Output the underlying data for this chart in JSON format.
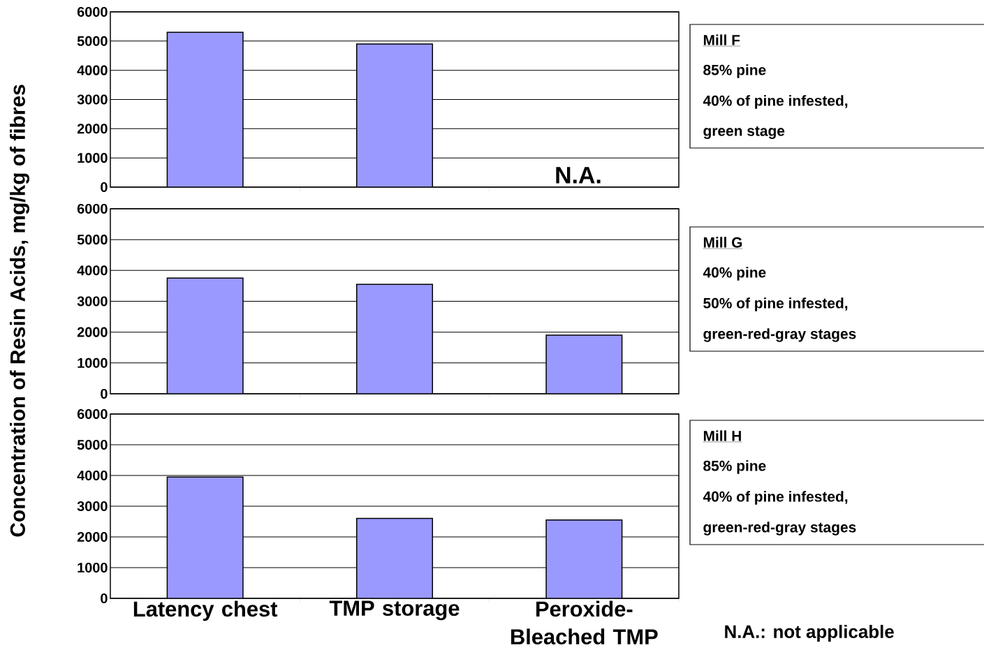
{
  "chart_data": [
    {
      "type": "bar",
      "ylabel": "Concentration of Resin Acids, mg/kg of fibres",
      "categories": [
        null,
        null,
        null
      ],
      "values": [
        5300,
        4900,
        null
      ],
      "color": "#9999ff",
      "ylim": [
        0,
        6000
      ],
      "yticks": [
        0,
        1000,
        2000,
        3000,
        4000,
        5000,
        6000
      ],
      "grid": "y",
      "tick_labels": "y",
      "annotations": [
        "Mill F",
        "85% pine",
        "40% of pine infested,",
        "green stage",
        "N.A."
      ]
    },
    {
      "type": "bar",
      "categories": [
        null,
        null,
        null
      ],
      "values": [
        3750,
        3550,
        1900
      ],
      "color": "#9999ff",
      "ylim": [
        0,
        6000
      ],
      "yticks": [
        0,
        1000,
        2000,
        3000,
        4000,
        5000,
        6000
      ],
      "grid": "y",
      "tick_labels": "y",
      "annotations": [
        "Mill G",
        "40% pine",
        "50% of pine infested,",
        "green-red-gray stages"
      ]
    },
    {
      "type": "bar",
      "categories": [
        "Latency chest",
        "TMP storage",
        "Peroxide-Bleached TMP"
      ],
      "values": [
        3950,
        2600,
        2550
      ],
      "color": "#9999ff",
      "ylim": [
        0,
        6000
      ],
      "yticks": [
        0,
        1000,
        2000,
        3000,
        4000,
        5000,
        6000
      ],
      "grid": "y",
      "annotations": [
        "Mill H",
        "85% pine",
        "40% of pine infested,",
        "green-red-gray stages",
        "N.A.: not applicable"
      ]
    }
  ]
}
